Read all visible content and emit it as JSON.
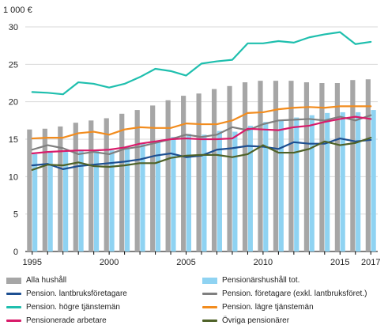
{
  "chart_data": {
    "type": "bar+line",
    "unit_label": "1 000 €",
    "ylim": [
      0,
      30
    ],
    "yticks": [
      "0",
      "5",
      "10",
      "15",
      "20",
      "25",
      "30"
    ],
    "x": [
      1995,
      1996,
      1997,
      1998,
      1999,
      2000,
      2001,
      2002,
      2003,
      2004,
      2005,
      2006,
      2007,
      2008,
      2009,
      2010,
      2011,
      2012,
      2013,
      2014,
      2015,
      2016,
      2017
    ],
    "x_tick_labels": [
      "1995",
      "2000",
      "2005",
      "2010",
      "2015",
      "2017"
    ],
    "grid": true,
    "legend_position": "bottom",
    "bar_series": [
      {
        "name": "Alla hushåll",
        "color": "#a6a6a6",
        "values": [
          16.3,
          16.4,
          16.7,
          17.2,
          17.5,
          17.8,
          18.4,
          18.9,
          19.5,
          20.2,
          20.8,
          21.1,
          21.7,
          22.1,
          22.6,
          22.8,
          22.8,
          22.8,
          22.6,
          22.5,
          22.5,
          22.9,
          23.0
        ]
      },
      {
        "name": "Pensionärshushåll tot.",
        "color": "#8fd3f2",
        "values": [
          13.0,
          13.2,
          13.3,
          13.6,
          13.6,
          13.5,
          14.0,
          14.5,
          14.8,
          15.3,
          15.7,
          15.6,
          16.1,
          16.0,
          16.8,
          17.3,
          17.5,
          17.9,
          18.2,
          18.5,
          18.6,
          18.6,
          18.9
        ]
      }
    ],
    "line_series": [
      {
        "name": "Pension. lantbruksföretagare",
        "color": "#1d4f91",
        "values": [
          11.5,
          11.7,
          11.0,
          11.4,
          11.6,
          11.8,
          12.0,
          12.3,
          12.8,
          13.1,
          12.6,
          12.8,
          13.6,
          13.8,
          14.1,
          14.0,
          13.7,
          14.6,
          14.4,
          14.4,
          15.1,
          14.7,
          14.9
        ]
      },
      {
        "name": "Pension. företagare (exkl. lantbruksföret.)",
        "color": "#7f7f7f",
        "values": [
          13.6,
          14.2,
          13.8,
          13.0,
          13.3,
          13.0,
          13.7,
          14.0,
          14.5,
          15.0,
          15.6,
          15.3,
          15.6,
          16.6,
          16.2,
          17.0,
          17.5,
          17.6,
          17.7,
          17.5,
          18.0,
          17.5,
          18.2
        ]
      },
      {
        "name": "Pension. högre tjänstemän",
        "color": "#1fbfae",
        "values": [
          21.3,
          21.2,
          21.0,
          22.6,
          22.4,
          21.9,
          22.4,
          23.3,
          24.4,
          24.1,
          23.5,
          25.1,
          25.4,
          25.6,
          27.8,
          27.8,
          28.1,
          27.9,
          28.6,
          29.0,
          29.3,
          27.7,
          28.0
        ]
      },
      {
        "name": "Pension. lägre tjänstemän",
        "color": "#f28c1e",
        "values": [
          15.1,
          15.2,
          15.2,
          15.8,
          16.0,
          15.6,
          16.3,
          16.6,
          16.5,
          16.5,
          17.1,
          17.0,
          17.0,
          17.5,
          18.5,
          18.6,
          19.0,
          19.2,
          19.3,
          19.2,
          19.4,
          19.4,
          19.4
        ]
      },
      {
        "name": "Pensionerade arbetare",
        "color": "#d81b6a",
        "values": [
          13.1,
          13.3,
          13.4,
          13.5,
          13.5,
          13.6,
          13.9,
          14.4,
          14.7,
          15.0,
          15.1,
          15.0,
          15.0,
          15.1,
          16.4,
          16.3,
          16.2,
          16.6,
          16.8,
          17.3,
          17.7,
          18.0,
          17.7
        ]
      },
      {
        "name": "Övriga pensionärer",
        "color": "#4f6228",
        "values": [
          10.9,
          11.6,
          11.5,
          11.9,
          11.4,
          11.3,
          11.5,
          11.8,
          11.8,
          12.5,
          12.8,
          12.9,
          12.9,
          12.6,
          13.0,
          14.2,
          13.2,
          13.2,
          13.7,
          14.7,
          14.2,
          14.5,
          15.2
        ]
      }
    ]
  }
}
